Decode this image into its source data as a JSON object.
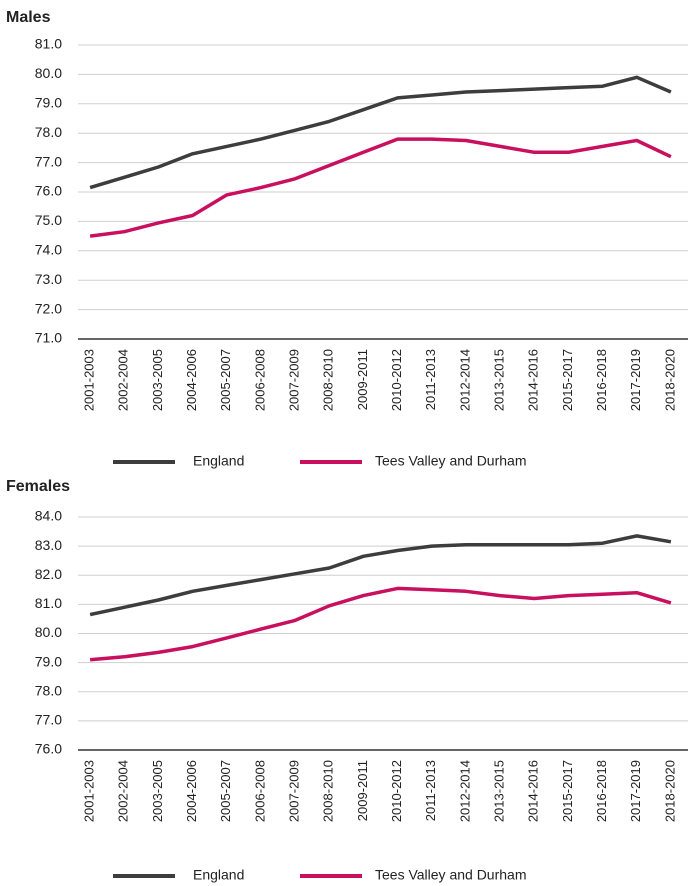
{
  "chart_data": [
    {
      "type": "line",
      "title": "Males",
      "categories": [
        "2001-2003",
        "2002-2004",
        "2003-2005",
        "2004-2006",
        "2005-2007",
        "2006-2008",
        "2007-2009",
        "2008-2010",
        "2009-2011",
        "2010-2012",
        "2011-2013",
        "2012-2014",
        "2013-2015",
        "2014-2016",
        "2015-2017",
        "2016-2018",
        "2017-2019",
        "2018-2020"
      ],
      "series": [
        {
          "name": "England",
          "color": "#3d3d3d",
          "values": [
            76.15,
            76.5,
            76.85,
            77.3,
            77.55,
            77.8,
            78.1,
            78.4,
            78.8,
            79.2,
            79.3,
            79.4,
            79.45,
            79.5,
            79.55,
            79.6,
            79.9,
            79.4
          ]
        },
        {
          "name": "Tees Valley and Durham",
          "color": "#c8105f",
          "values": [
            74.5,
            74.65,
            74.95,
            75.2,
            75.9,
            76.15,
            76.45,
            76.9,
            77.35,
            77.8,
            77.8,
            77.75,
            77.55,
            77.35,
            77.35,
            77.55,
            77.75,
            77.2
          ]
        }
      ],
      "ylim": [
        71,
        81
      ],
      "yticks": [
        {
          "value": 71,
          "label": "71.0"
        },
        {
          "value": 72,
          "label": "72.0"
        },
        {
          "value": 73,
          "label": "73.0"
        },
        {
          "value": 74,
          "label": "74.0"
        },
        {
          "value": 75,
          "label": "75.0"
        },
        {
          "value": 76,
          "label": "76.0"
        },
        {
          "value": 77,
          "label": "77.0"
        },
        {
          "value": 78,
          "label": "78.0"
        },
        {
          "value": 79,
          "label": "79.0"
        },
        {
          "value": 80,
          "label": "80.0"
        },
        {
          "value": 81,
          "label": "81.0"
        }
      ],
      "grid": true,
      "legend": "bottom"
    },
    {
      "type": "line",
      "title": "Females",
      "categories": [
        "2001-2003",
        "2002-2004",
        "2003-2005",
        "2004-2006",
        "2005-2007",
        "2006-2008",
        "2007-2009",
        "2008-2010",
        "2009-2011",
        "2010-2012",
        "2011-2013",
        "2012-2014",
        "2013-2015",
        "2014-2016",
        "2015-2017",
        "2016-2018",
        "2017-2019",
        "2018-2020"
      ],
      "series": [
        {
          "name": "England",
          "color": "#3d3d3d",
          "values": [
            80.65,
            80.9,
            81.15,
            81.45,
            81.65,
            81.85,
            82.05,
            82.25,
            82.65,
            82.85,
            83.0,
            83.05,
            83.05,
            83.05,
            83.05,
            83.1,
            83.35,
            83.15
          ]
        },
        {
          "name": "Tees Valley and Durham",
          "color": "#c8105f",
          "values": [
            79.1,
            79.2,
            79.35,
            79.55,
            79.85,
            80.15,
            80.45,
            80.95,
            81.3,
            81.55,
            81.5,
            81.45,
            81.3,
            81.2,
            81.3,
            81.35,
            81.4,
            81.05
          ]
        }
      ],
      "ylim": [
        76,
        84
      ],
      "yticks": [
        {
          "value": 76,
          "label": "76.0"
        },
        {
          "value": 77,
          "label": "77.0"
        },
        {
          "value": 78,
          "label": "78.0"
        },
        {
          "value": 79,
          "label": "79.0"
        },
        {
          "value": 80,
          "label": "80.0"
        },
        {
          "value": 81,
          "label": "81.0"
        },
        {
          "value": 82,
          "label": "82.0"
        },
        {
          "value": 83,
          "label": "83.0"
        },
        {
          "value": 84,
          "label": "84.0"
        }
      ],
      "grid": true,
      "legend": "bottom"
    }
  ]
}
